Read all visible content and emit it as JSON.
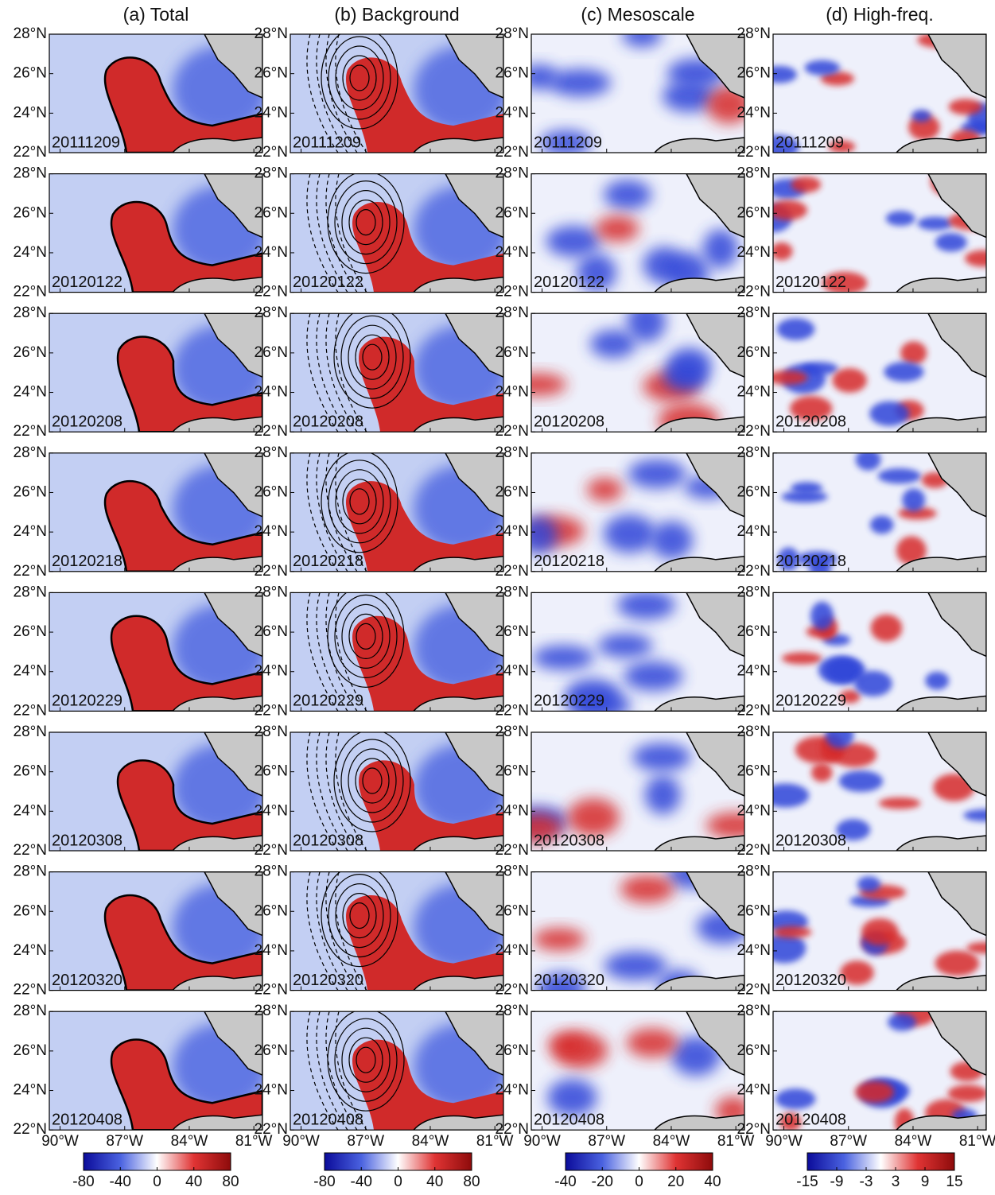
{
  "columns": [
    {
      "title": "(a) Total",
      "colorbar": {
        "lim": [
          -80,
          80
        ],
        "ticks": [
          -80,
          -40,
          0,
          40,
          80
        ]
      }
    },
    {
      "title": "(b) Background",
      "colorbar": {
        "lim": [
          -80,
          80
        ],
        "ticks": [
          -80,
          -40,
          0,
          40,
          80
        ]
      }
    },
    {
      "title": "(c) Mesoscale",
      "colorbar": {
        "lim": [
          -40,
          40
        ],
        "ticks": [
          -40,
          -20,
          0,
          20,
          40
        ]
      }
    },
    {
      "title": "(d) High-freq.",
      "colorbar": {
        "lim": [
          -15,
          15
        ],
        "ticks": [
          -15,
          -9,
          -3,
          3,
          9,
          15
        ]
      }
    }
  ],
  "rows": [
    "20111209",
    "20120122",
    "20120208",
    "20120218",
    "20120229",
    "20120308",
    "20120320",
    "20120408"
  ],
  "latlim": [
    22,
    28
  ],
  "lat_ticks": [
    {
      "value": 28,
      "label": "28°N"
    },
    {
      "value": 26,
      "label": "26°N"
    },
    {
      "value": 24,
      "label": "24°N"
    },
    {
      "value": 22,
      "label": "22°N"
    }
  ],
  "lonlim": [
    -90.5,
    -80.6
  ],
  "lon_ticks": [
    {
      "value": -90,
      "label": "90°W"
    },
    {
      "value": -87,
      "label": "87°W"
    },
    {
      "value": -84,
      "label": "84°W"
    },
    {
      "value": -81,
      "label": "81°W"
    }
  ]
}
